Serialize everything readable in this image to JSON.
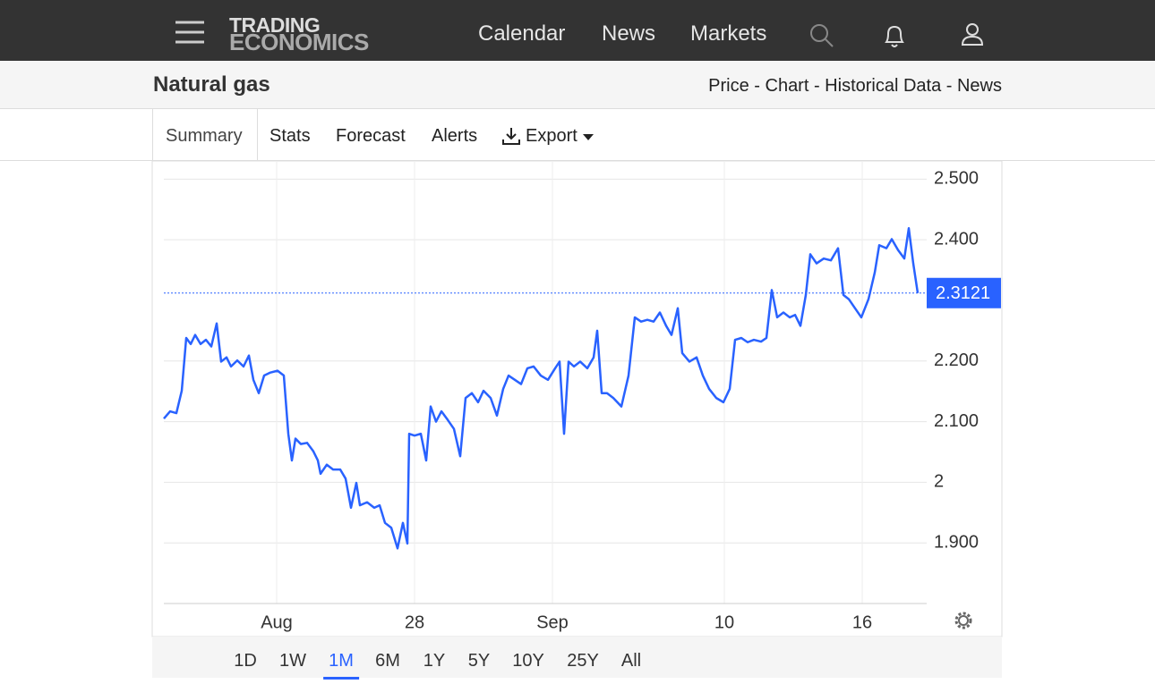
{
  "nav": {
    "logo": [
      "TRADING",
      "ECONOMICS"
    ],
    "links": [
      "Calendar",
      "News",
      "Markets"
    ]
  },
  "header": {
    "title": "Natural gas",
    "links": "Price - Chart - Historical Data - News"
  },
  "tabs": [
    "Summary",
    "Stats",
    "Forecast",
    "Alerts",
    "Export"
  ],
  "chart_data": {
    "type": "line",
    "color": "#2962ff",
    "grid": true,
    "xlim": [
      0,
      852
    ],
    "xticks": [
      {
        "value": 126,
        "label": "Aug"
      },
      {
        "value": 280,
        "label": "28"
      },
      {
        "value": 434,
        "label": "Sep"
      },
      {
        "value": 626,
        "label": "10"
      },
      {
        "value": 780,
        "label": "16"
      }
    ],
    "ylim": [
      1.8,
      2.53
    ],
    "yticks": [
      {
        "value": 1.9,
        "label": "1.900"
      },
      2,
      {
        "value": 2.1,
        "label": "2.100"
      },
      {
        "value": 2.2,
        "label": "2.200"
      },
      {
        "value": 2.4,
        "label": "2.400"
      },
      {
        "value": 2.5,
        "label": "2.500"
      }
    ],
    "current_value": 2.3121,
    "x": [
      0,
      7,
      14,
      20,
      25,
      30,
      35,
      41,
      47,
      53,
      59,
      64,
      70,
      75,
      82,
      89,
      95,
      100,
      106,
      112,
      119,
      127,
      134,
      139,
      143,
      147,
      153,
      160,
      167,
      172,
      175,
      182,
      189,
      197,
      203,
      209,
      215,
      219,
      227,
      235,
      241,
      247,
      254,
      261,
      267,
      272,
      274,
      280,
      287,
      293,
      298,
      304,
      310,
      317,
      324,
      331,
      337,
      344,
      351,
      357,
      365,
      372,
      379,
      385,
      392,
      399,
      406,
      413,
      421,
      429,
      437,
      442,
      447,
      452,
      458,
      465,
      473,
      480,
      484,
      489,
      495,
      502,
      511,
      519,
      526,
      533,
      540,
      547,
      554,
      561,
      567,
      574,
      579,
      587,
      595,
      602,
      609,
      617,
      625,
      632,
      638,
      645,
      652,
      659,
      667,
      673,
      679,
      685,
      692,
      699,
      705,
      711,
      717,
      722,
      729,
      737,
      745,
      753,
      759,
      765,
      772,
      779,
      787,
      794,
      799,
      807,
      813,
      820,
      827,
      832,
      837,
      842
    ],
    "values": [
      2.105,
      2.117,
      2.114,
      2.151,
      2.238,
      2.228,
      2.243,
      2.228,
      2.235,
      2.224,
      2.262,
      2.199,
      2.206,
      2.191,
      2.201,
      2.191,
      2.209,
      2.169,
      2.147,
      2.176,
      2.181,
      2.184,
      2.176,
      2.08,
      2.036,
      2.072,
      2.063,
      2.065,
      2.051,
      2.036,
      2.014,
      2.029,
      2.021,
      2.021,
      2.006,
      1.958,
      1.999,
      1.962,
      1.967,
      1.958,
      1.962,
      1.933,
      1.925,
      1.891,
      1.933,
      1.899,
      2.08,
      2.077,
      2.08,
      2.036,
      2.125,
      2.1,
      2.117,
      2.103,
      2.088,
      2.043,
      2.139,
      2.147,
      2.132,
      2.151,
      2.139,
      2.11,
      2.154,
      2.176,
      2.169,
      2.162,
      2.188,
      2.191,
      2.176,
      2.169,
      2.188,
      2.199,
      2.08,
      2.199,
      2.191,
      2.199,
      2.188,
      2.206,
      2.25,
      2.147,
      2.147,
      2.139,
      2.125,
      2.176,
      2.272,
      2.265,
      2.268,
      2.265,
      2.28,
      2.258,
      2.243,
      2.287,
      2.213,
      2.199,
      2.206,
      2.176,
      2.154,
      2.139,
      2.132,
      2.154,
      2.235,
      2.238,
      2.231,
      2.235,
      2.232,
      2.238,
      2.317,
      2.272,
      2.28,
      2.272,
      2.276,
      2.258,
      2.309,
      2.376,
      2.361,
      2.369,
      2.366,
      2.386,
      2.309,
      2.302,
      2.287,
      2.272,
      2.302,
      2.346,
      2.391,
      2.386,
      2.401,
      2.383,
      2.369,
      2.419,
      2.361,
      2.312
    ]
  },
  "ranges": [
    "1D",
    "1W",
    "1M",
    "6M",
    "1Y",
    "5Y",
    "10Y",
    "25Y",
    "All"
  ],
  "selected_range": "1M"
}
